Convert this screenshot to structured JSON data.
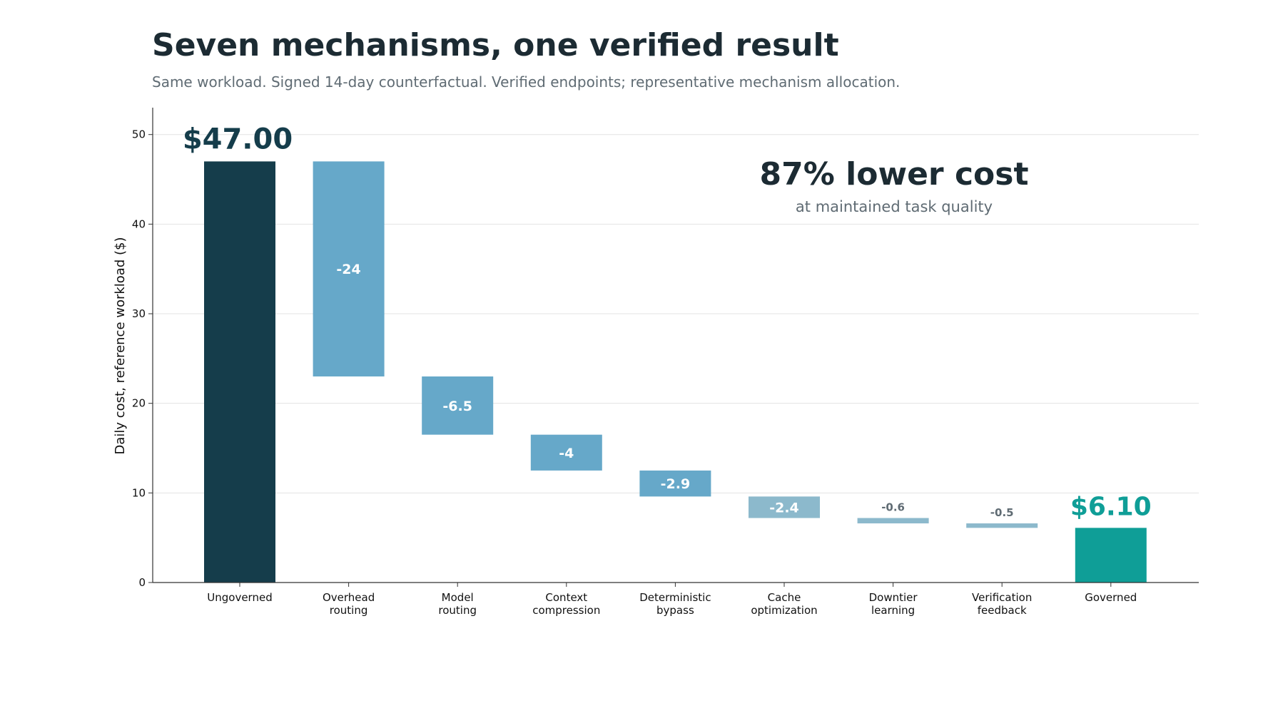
{
  "header": {
    "title": "Seven mechanisms, one verified result",
    "subtitle": "Same workload. Signed 14-day counterfactual. Verified endpoints; representative mechanism allocation."
  },
  "callout": {
    "headline": "87% lower cost",
    "subheadline": "at maintained task quality"
  },
  "colors": {
    "start": "#153d4b",
    "step_strong": "#66a8c9",
    "step_light": "#8cb9cc",
    "end": "#0f9e97",
    "text_dark": "#1c2b33",
    "text_muted": "#5f6b73",
    "grid": "#e3e3e3"
  },
  "chart_data": {
    "type": "bar",
    "subtype": "waterfall",
    "title": "Seven mechanisms, one verified result",
    "subtitle": "Same workload. Signed 14-day counterfactual. Verified endpoints; representative mechanism allocation.",
    "xlabel": "",
    "ylabel": "Daily cost, reference workload ($)",
    "ylim": [
      0,
      53
    ],
    "yticks": [
      0,
      10,
      20,
      30,
      40,
      50
    ],
    "grid": true,
    "categories": [
      "Ungoverned",
      "Overhead\nrouting",
      "Model\nrouting",
      "Context\ncompression",
      "Deterministic\nbypass",
      "Cache\noptimization",
      "Downtier\nlearning",
      "Verification\nfeedback",
      "Governed"
    ],
    "values": [
      47.0,
      -24,
      -6.5,
      -4,
      -2.9,
      -2.4,
      -0.6,
      -0.5,
      6.1
    ],
    "kinds": [
      "total",
      "delta",
      "delta",
      "delta",
      "delta",
      "delta",
      "delta",
      "delta",
      "total"
    ],
    "data_labels": [
      "$47.00",
      "-24",
      "-6.5",
      "-4",
      "-2.9",
      "-2.4",
      "-0.6",
      "-0.5",
      "$6.10"
    ]
  }
}
